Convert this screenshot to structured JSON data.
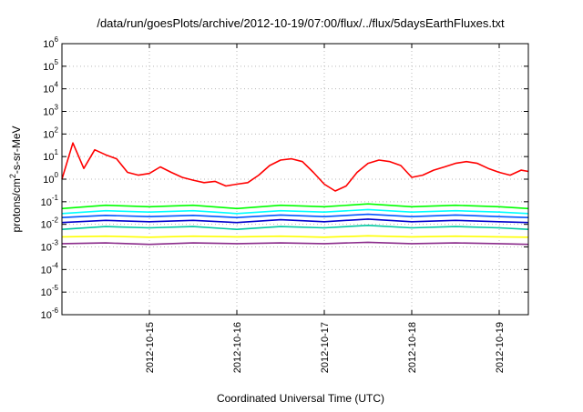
{
  "chart_data": {
    "type": "line",
    "title": "/data/run/goesPlots/archive/2012-10-19/07:00/flux/../flux/5daysEarthFluxes.txt",
    "xlabel": "Coordinated Universal Time (UTC)",
    "ylabel": "protons/cm2-s-sr-MeV",
    "ylabel_base": "protons/cm",
    "ylabel_sup": "2",
    "ylabel_rest": "-s-sr-MeV",
    "yscale": "log",
    "ylim": [
      1e-06,
      1000000.0
    ],
    "xlim": [
      "2012-10-14T00:00",
      "2012-10-19T08:00"
    ],
    "grid": true,
    "x_ticks": [
      "2012-10-15",
      "2012-10-16",
      "2012-10-17",
      "2012-10-18",
      "2012-10-19"
    ],
    "y_ticks": [
      {
        "base": "10",
        "exp": "-6"
      },
      {
        "base": "10",
        "exp": "-5"
      },
      {
        "base": "10",
        "exp": "-4"
      },
      {
        "base": "10",
        "exp": "-3"
      },
      {
        "base": "10",
        "exp": "-2"
      },
      {
        "base": "10",
        "exp": "-1"
      },
      {
        "base": "10",
        "exp": "0"
      },
      {
        "base": "10",
        "exp": "1"
      },
      {
        "base": "10",
        "exp": "2"
      },
      {
        "base": "10",
        "exp": "3"
      },
      {
        "base": "10",
        "exp": "4"
      },
      {
        "base": "10",
        "exp": "5"
      },
      {
        "base": "10",
        "exp": "6"
      }
    ],
    "series": [
      {
        "color": "#ff0000",
        "x": [
          "2012-10-14T00:00",
          "2012-10-14T03:00",
          "2012-10-14T06:00",
          "2012-10-14T09:00",
          "2012-10-14T12:00",
          "2012-10-14T15:00",
          "2012-10-14T18:00",
          "2012-10-14T21:00",
          "2012-10-15T00:00",
          "2012-10-15T03:00",
          "2012-10-15T06:00",
          "2012-10-15T09:00",
          "2012-10-15T12:00",
          "2012-10-15T15:00",
          "2012-10-15T18:00",
          "2012-10-15T21:00",
          "2012-10-16T00:00",
          "2012-10-16T03:00",
          "2012-10-16T06:00",
          "2012-10-16T09:00",
          "2012-10-16T12:00",
          "2012-10-16T15:00",
          "2012-10-16T18:00",
          "2012-10-16T21:00",
          "2012-10-17T00:00",
          "2012-10-17T03:00",
          "2012-10-17T06:00",
          "2012-10-17T09:00",
          "2012-10-17T12:00",
          "2012-10-17T15:00",
          "2012-10-17T18:00",
          "2012-10-17T21:00",
          "2012-10-18T00:00",
          "2012-10-18T03:00",
          "2012-10-18T06:00",
          "2012-10-18T09:00",
          "2012-10-18T12:00",
          "2012-10-18T15:00",
          "2012-10-18T18:00",
          "2012-10-18T21:00",
          "2012-10-19T00:00",
          "2012-10-19T03:00",
          "2012-10-19T06:00",
          "2012-10-19T08:00"
        ],
        "y": [
          1.0,
          40,
          3,
          20,
          12,
          8,
          2,
          1.5,
          1.8,
          3.5,
          2,
          1.2,
          0.9,
          0.7,
          0.8,
          0.5,
          0.6,
          0.7,
          1.5,
          4,
          7,
          8,
          6,
          2,
          0.6,
          0.3,
          0.5,
          2,
          5,
          7,
          6,
          4,
          1.2,
          1.5,
          2.5,
          3.5,
          5,
          6,
          5,
          3,
          2,
          1.5,
          2.5,
          2.2
        ]
      },
      {
        "color": "#00ff00",
        "x": [
          "2012-10-14T00:00",
          "2012-10-14T12:00",
          "2012-10-15T00:00",
          "2012-10-15T12:00",
          "2012-10-16T00:00",
          "2012-10-16T12:00",
          "2012-10-17T00:00",
          "2012-10-17T12:00",
          "2012-10-18T00:00",
          "2012-10-18T12:00",
          "2012-10-19T00:00",
          "2012-10-19T08:00"
        ],
        "y": [
          0.05,
          0.07,
          0.06,
          0.07,
          0.05,
          0.07,
          0.06,
          0.08,
          0.06,
          0.07,
          0.06,
          0.05
        ]
      },
      {
        "color": "#00ffff",
        "x": [
          "2012-10-14T00:00",
          "2012-10-14T12:00",
          "2012-10-15T00:00",
          "2012-10-15T12:00",
          "2012-10-16T00:00",
          "2012-10-16T12:00",
          "2012-10-17T00:00",
          "2012-10-17T12:00",
          "2012-10-18T00:00",
          "2012-10-18T12:00",
          "2012-10-19T00:00",
          "2012-10-19T08:00"
        ],
        "y": [
          0.03,
          0.04,
          0.035,
          0.04,
          0.03,
          0.04,
          0.035,
          0.045,
          0.035,
          0.04,
          0.035,
          0.03
        ]
      },
      {
        "color": "#0055ff",
        "x": [
          "2012-10-14T00:00",
          "2012-10-14T12:00",
          "2012-10-15T00:00",
          "2012-10-15T12:00",
          "2012-10-16T00:00",
          "2012-10-16T12:00",
          "2012-10-17T00:00",
          "2012-10-17T12:00",
          "2012-10-18T00:00",
          "2012-10-18T12:00",
          "2012-10-19T00:00",
          "2012-10-19T08:00"
        ],
        "y": [
          0.02,
          0.025,
          0.022,
          0.025,
          0.02,
          0.026,
          0.022,
          0.028,
          0.022,
          0.026,
          0.022,
          0.02
        ]
      },
      {
        "color": "#0000cc",
        "x": [
          "2012-10-14T00:00",
          "2012-10-14T12:00",
          "2012-10-15T00:00",
          "2012-10-15T12:00",
          "2012-10-16T00:00",
          "2012-10-16T12:00",
          "2012-10-17T00:00",
          "2012-10-17T12:00",
          "2012-10-18T00:00",
          "2012-10-18T12:00",
          "2012-10-19T00:00",
          "2012-10-19T08:00"
        ],
        "y": [
          0.012,
          0.015,
          0.013,
          0.015,
          0.012,
          0.016,
          0.013,
          0.017,
          0.013,
          0.015,
          0.013,
          0.012
        ]
      },
      {
        "color": "#00c8a0",
        "x": [
          "2012-10-14T00:00",
          "2012-10-14T12:00",
          "2012-10-15T00:00",
          "2012-10-15T12:00",
          "2012-10-16T00:00",
          "2012-10-16T12:00",
          "2012-10-17T00:00",
          "2012-10-17T12:00",
          "2012-10-18T00:00",
          "2012-10-18T12:00",
          "2012-10-19T00:00",
          "2012-10-19T08:00"
        ],
        "y": [
          0.006,
          0.008,
          0.007,
          0.008,
          0.006,
          0.008,
          0.007,
          0.009,
          0.007,
          0.008,
          0.007,
          0.006
        ]
      },
      {
        "color": "#ffff00",
        "x": [
          "2012-10-14T00:00",
          "2012-10-14T12:00",
          "2012-10-15T00:00",
          "2012-10-15T12:00",
          "2012-10-16T00:00",
          "2012-10-16T12:00",
          "2012-10-17T00:00",
          "2012-10-17T12:00",
          "2012-10-18T00:00",
          "2012-10-18T12:00",
          "2012-10-19T00:00",
          "2012-10-19T08:00"
        ],
        "y": [
          0.0028,
          0.003,
          0.0027,
          0.003,
          0.0028,
          0.003,
          0.0027,
          0.0031,
          0.0028,
          0.003,
          0.0028,
          0.0027
        ]
      },
      {
        "color": "#8b2c8b",
        "x": [
          "2012-10-14T00:00",
          "2012-10-14T12:00",
          "2012-10-15T00:00",
          "2012-10-15T12:00",
          "2012-10-16T00:00",
          "2012-10-16T12:00",
          "2012-10-17T00:00",
          "2012-10-17T12:00",
          "2012-10-18T00:00",
          "2012-10-18T12:00",
          "2012-10-19T00:00",
          "2012-10-19T08:00"
        ],
        "y": [
          0.0014,
          0.0015,
          0.0013,
          0.0015,
          0.0014,
          0.0015,
          0.0014,
          0.0016,
          0.0014,
          0.0015,
          0.0014,
          0.0013
        ]
      }
    ]
  }
}
